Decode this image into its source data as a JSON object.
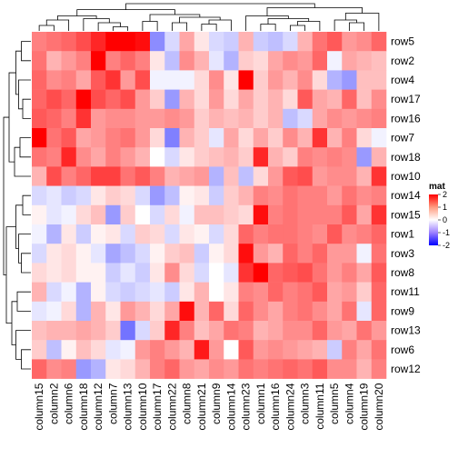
{
  "chart_data": {
    "type": "heatmap",
    "row_labels": [
      "row5",
      "row2",
      "row4",
      "row17",
      "row16",
      "row7",
      "row18",
      "row10",
      "row14",
      "row15",
      "row1",
      "row3",
      "row8",
      "row11",
      "row9",
      "row13",
      "row6",
      "row12"
    ],
    "column_labels": [
      "column15",
      "column2",
      "column6",
      "column18",
      "column12",
      "column7",
      "column13",
      "column10",
      "column17",
      "column22",
      "column8",
      "column21",
      "column9",
      "column14",
      "column23",
      "column1",
      "column16",
      "column24",
      "column3",
      "column11",
      "column5",
      "column4",
      "column19",
      "column20"
    ],
    "values": [
      [
        1.0,
        1.1,
        1.2,
        1.4,
        1.7,
        2.3,
        2.4,
        1.9,
        -0.9,
        -0.3,
        0.7,
        0.2,
        -0.3,
        -0.4,
        0.6,
        -0.4,
        -0.5,
        -0.3,
        0.6,
        1.1,
        1.3,
        0.8,
        0.9,
        1.2
      ],
      [
        1.1,
        0.6,
        0.8,
        1.0,
        2.5,
        1.0,
        1.2,
        1.0,
        0.2,
        -0.5,
        0.9,
        0.6,
        -0.2,
        -0.6,
        0.4,
        0.3,
        0.7,
        0.9,
        0.8,
        1.2,
        -0.1,
        0.7,
        0.6,
        0.5
      ],
      [
        1.2,
        0.9,
        1.0,
        0.7,
        1.3,
        1.6,
        0.8,
        1.4,
        -0.1,
        -0.1,
        -0.1,
        0.3,
        0.9,
        0.2,
        2.0,
        0.4,
        0.8,
        0.6,
        0.9,
        0.3,
        -0.6,
        -0.8,
        0.5,
        0.5
      ],
      [
        1.2,
        1.4,
        1.2,
        2.1,
        1.4,
        1.2,
        1.4,
        0.8,
        0.4,
        -0.8,
        0.6,
        0.3,
        0.8,
        0.3,
        0.7,
        0.4,
        0.6,
        0.3,
        1.3,
        0.7,
        0.6,
        1.2,
        0.5,
        0.9
      ],
      [
        1.3,
        1.2,
        1.0,
        1.6,
        0.8,
        0.9,
        0.9,
        0.8,
        0.8,
        0.9,
        0.8,
        0.4,
        0.6,
        0.5,
        0.6,
        0.4,
        0.6,
        -0.5,
        -0.3,
        0.7,
        0.9,
        0.8,
        0.9,
        1.0
      ],
      [
        2.4,
        1.1,
        1.3,
        0.7,
        0.8,
        1.0,
        1.1,
        0.8,
        0.3,
        -1.0,
        0.6,
        0.4,
        -0.2,
        0.7,
        0.3,
        0.7,
        0.4,
        0.9,
        0.6,
        1.6,
        0.6,
        1.0,
        0.3,
        -0.1
      ],
      [
        1.1,
        1.0,
        1.7,
        0.9,
        0.7,
        1.0,
        0.8,
        0.6,
        0.0,
        -0.3,
        0.2,
        0.4,
        0.5,
        0.6,
        0.4,
        1.7,
        0.6,
        0.4,
        1.0,
        0.9,
        1.0,
        0.9,
        -0.8,
        0.6
      ],
      [
        0.6,
        1.4,
        1.0,
        1.2,
        1.5,
        1.5,
        1.1,
        1.3,
        1.0,
        0.6,
        0.7,
        0.8,
        -0.6,
        0.5,
        -0.5,
        0.3,
        0.8,
        1.3,
        1.4,
        0.8,
        0.9,
        0.9,
        0.6,
        1.6
      ],
      [
        -0.3,
        -0.2,
        -0.4,
        -0.3,
        0.2,
        0.4,
        0.3,
        -0.3,
        -0.8,
        -0.5,
        0.1,
        0.2,
        -0.4,
        0.4,
        0.6,
        1.0,
        0.9,
        1.1,
        1.0,
        1.0,
        0.8,
        1.1,
        0.9,
        1.0
      ],
      [
        0.1,
        -0.2,
        -0.1,
        0.3,
        0.5,
        -0.8,
        0.4,
        0.0,
        -0.3,
        0.3,
        -0.1,
        0.5,
        0.5,
        0.4,
        0.3,
        1.9,
        1.0,
        1.1,
        1.0,
        1.0,
        1.0,
        1.3,
        0.7,
        1.6
      ],
      [
        -0.1,
        -0.6,
        0.2,
        -0.4,
        0.1,
        0.2,
        -0.3,
        0.4,
        0.3,
        -0.3,
        0.2,
        0.1,
        -0.3,
        0.3,
        1.2,
        1.0,
        1.1,
        1.1,
        1.0,
        0.9,
        1.3,
        0.9,
        1.0,
        1.2
      ],
      [
        -0.3,
        0.2,
        0.3,
        0.1,
        -0.2,
        -0.7,
        -0.5,
        -0.3,
        0.1,
        0.4,
        0.5,
        -0.4,
        0.1,
        0.3,
        1.9,
        0.8,
        0.6,
        1.2,
        1.0,
        1.2,
        0.8,
        0.8,
        -0.1,
        1.1
      ],
      [
        0.3,
        0.2,
        0.3,
        0.1,
        0.1,
        -0.4,
        -0.2,
        -0.4,
        0.2,
        0.9,
        0.3,
        -0.3,
        0.0,
        -0.2,
        1.6,
        2.4,
        1.2,
        1.3,
        1.4,
        1.1,
        0.8,
        1.0,
        0.7,
        1.3
      ],
      [
        0.6,
        -0.3,
        -0.1,
        -0.6,
        0.1,
        -0.3,
        -0.4,
        -0.3,
        -0.2,
        -0.4,
        0.2,
        0.6,
        0.0,
        0.2,
        1.0,
        0.9,
        1.2,
        1.0,
        1.1,
        1.3,
        0.7,
        0.8,
        0.4,
        1.2
      ],
      [
        -0.2,
        -0.1,
        0.3,
        -0.6,
        0.6,
        0.2,
        0.8,
        0.6,
        0.3,
        0.7,
        1.9,
        0.6,
        1.2,
        0.3,
        1.2,
        0.9,
        0.7,
        1.0,
        1.1,
        0.9,
        0.7,
        1.1,
        -0.2,
        1.2
      ],
      [
        0.5,
        0.6,
        0.6,
        0.7,
        0.6,
        0.4,
        -1.1,
        -0.3,
        0.4,
        1.7,
        1.0,
        0.5,
        0.7,
        1.1,
        1.0,
        0.6,
        0.7,
        0.9,
        0.9,
        1.2,
        0.8,
        0.7,
        1.1,
        0.8
      ],
      [
        0.4,
        -0.5,
        0.1,
        0.5,
        0.3,
        -0.2,
        -0.1,
        0.8,
        1.0,
        0.8,
        0.6,
        1.8,
        0.8,
        0.0,
        1.3,
        0.8,
        0.9,
        0.8,
        0.7,
        0.6,
        -0.4,
        1.0,
        0.7,
        1.1
      ],
      [
        1.2,
        0.9,
        1.0,
        -0.8,
        -0.6,
        0.2,
        0.3,
        0.6,
        1.0,
        1.2,
        0.8,
        0.7,
        0.9,
        0.8,
        1.1,
        1.0,
        1.1,
        1.2,
        1.1,
        1.3,
        0.9,
        0.9,
        0.6,
        1.0
      ]
    ],
    "legend": {
      "title": "mat",
      "ticks": [
        "2",
        "1",
        "0",
        "-1",
        "-2"
      ],
      "tick_values": [
        2,
        1,
        0,
        -1,
        -2
      ],
      "placement": "right"
    },
    "colors": {
      "low": "#0000ff",
      "mid": "#ffffff",
      "high": "#ff0000"
    },
    "dendrograms": {
      "rows": true,
      "columns": true
    }
  }
}
